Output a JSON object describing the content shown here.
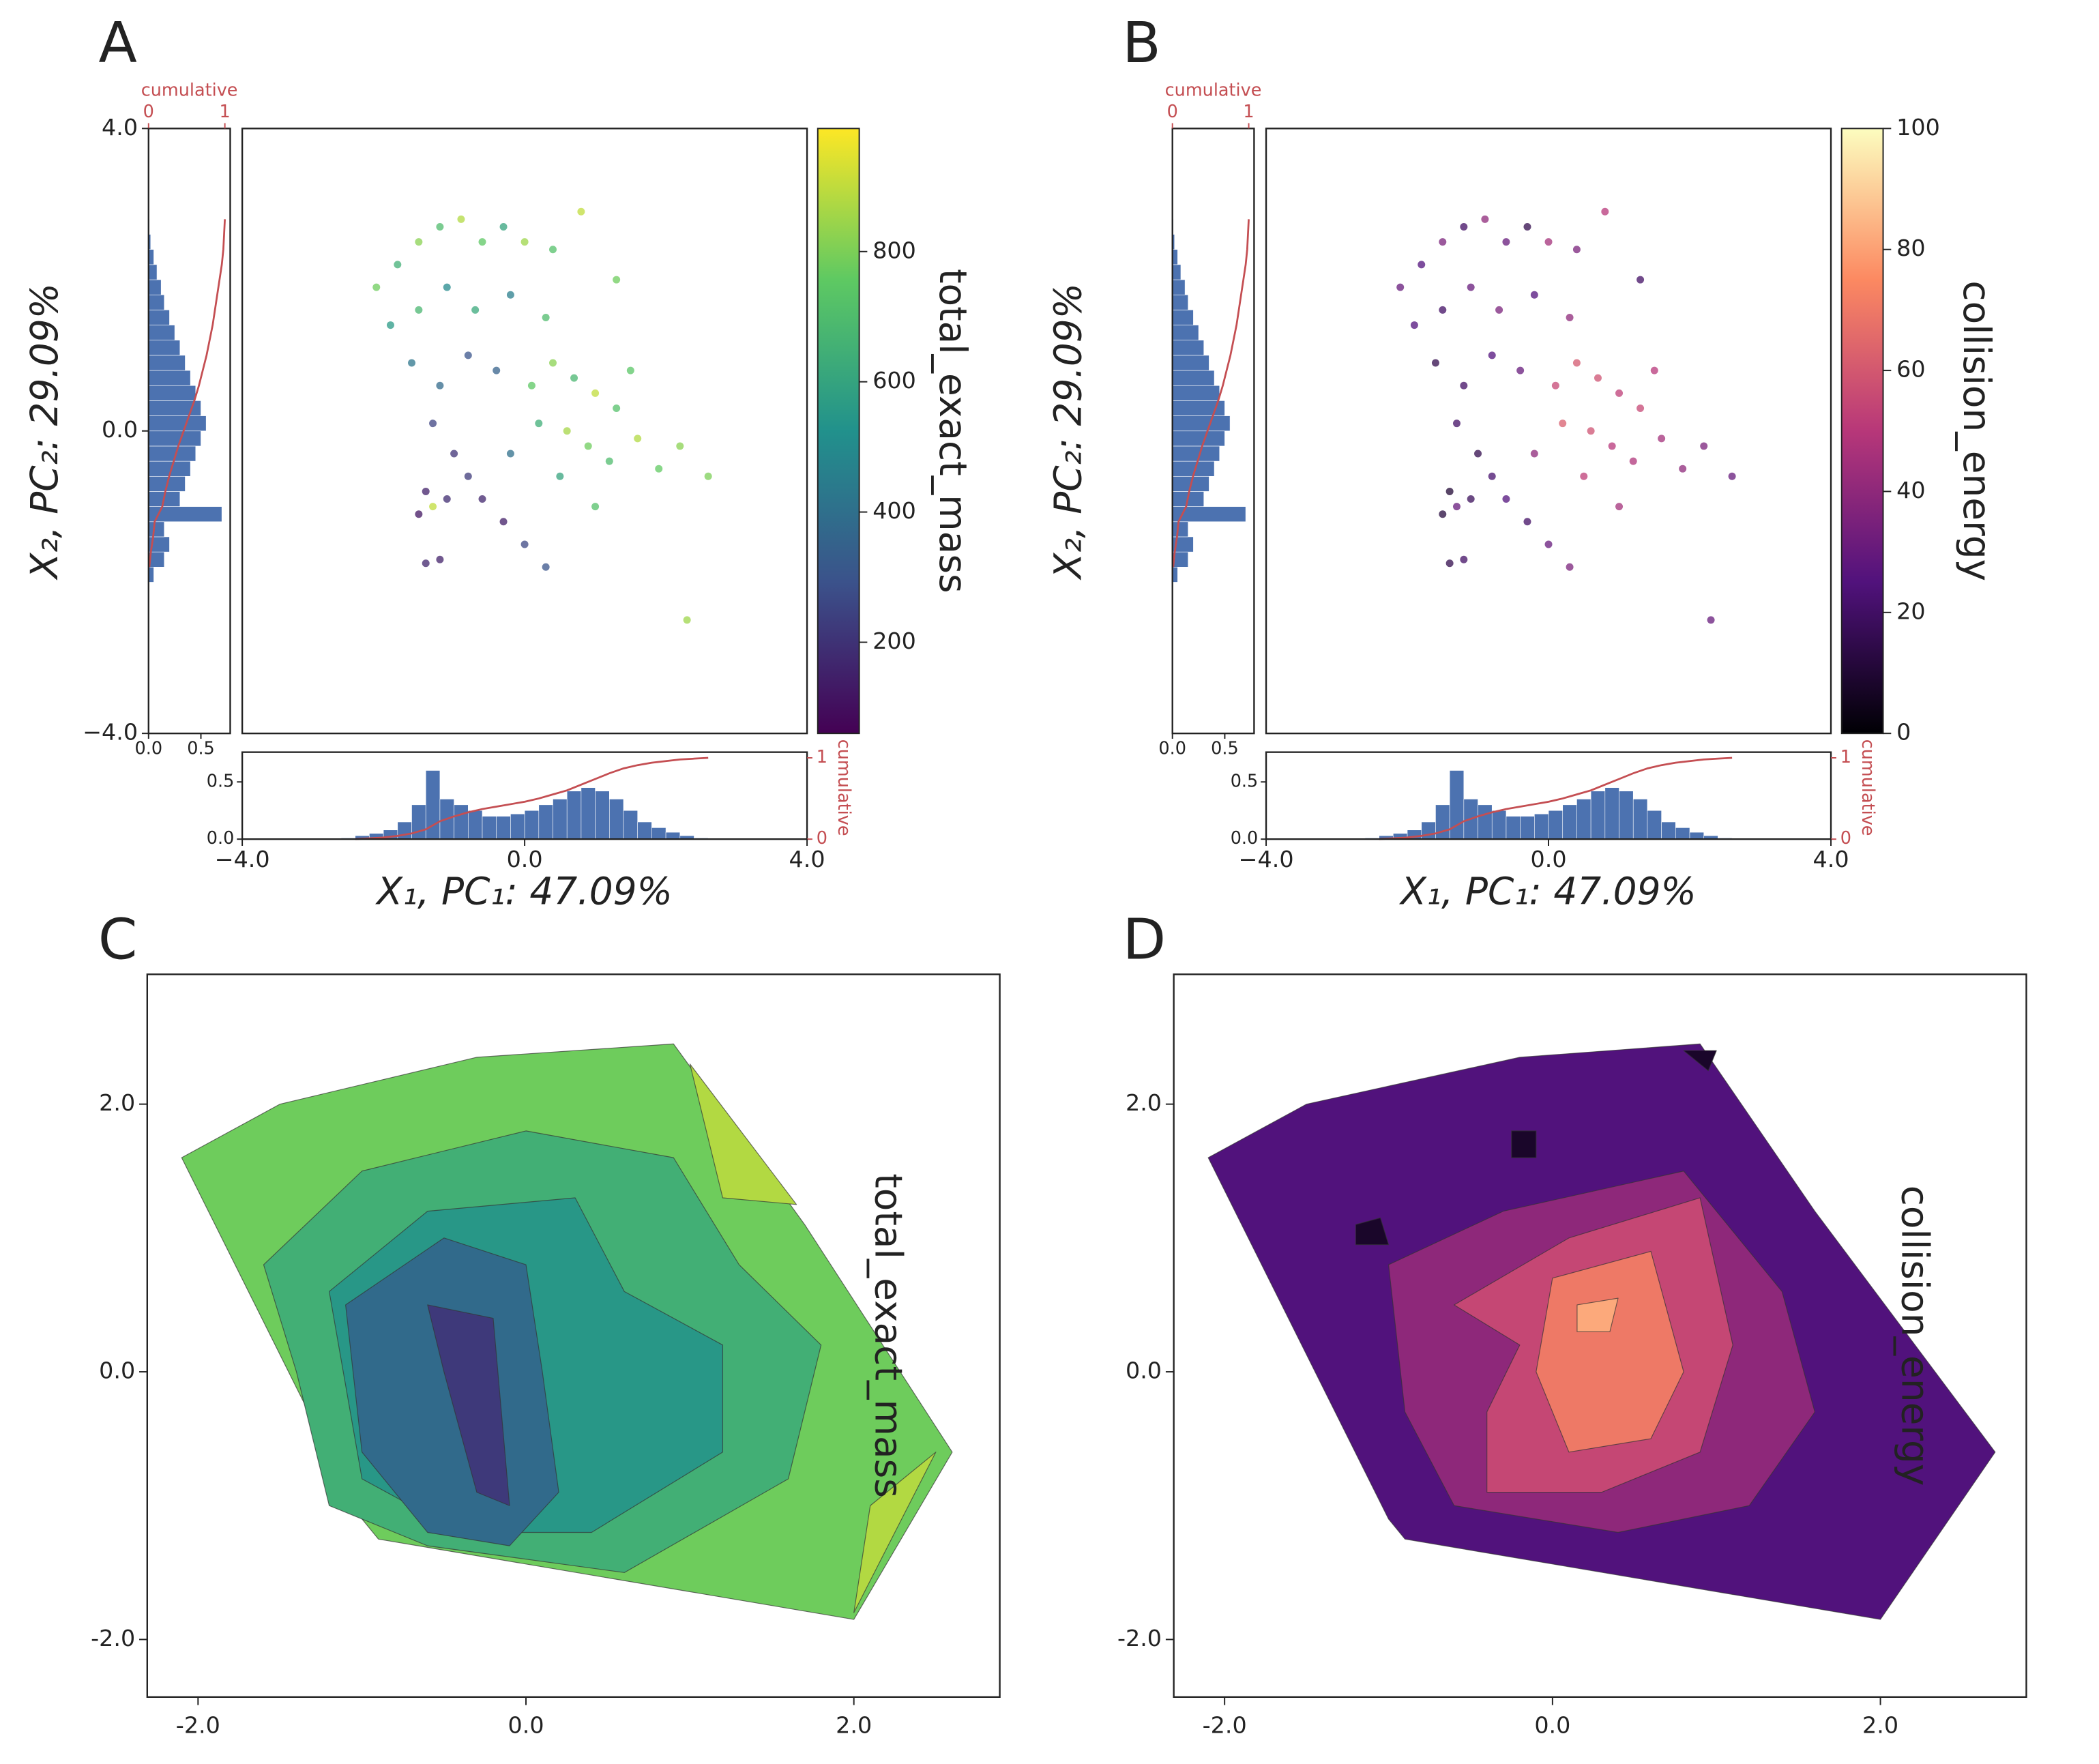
{
  "chart_data": [
    {
      "type": "scatter",
      "panel_label": "A",
      "xlabel": "X₁, PC₁: 47.09%",
      "ylabel": "X₂, PC₂: 29.09%",
      "xlim": [
        -4,
        4
      ],
      "ylim": [
        -4,
        4
      ],
      "xticks": [
        {
          "value": -4,
          "label": "−4.0"
        },
        {
          "value": 0,
          "label": "0.0"
        },
        {
          "value": 4,
          "label": "4.0"
        }
      ],
      "yticks": [
        {
          "value": -4,
          "label": "−4.0"
        },
        {
          "value": 0,
          "label": "0.0"
        },
        {
          "value": 4,
          "label": "4.0"
        }
      ],
      "x": [
        -2.1,
        -1.8,
        -1.5,
        -1.2,
        -0.9,
        -0.6,
        -0.3,
        0.0,
        0.4,
        0.8,
        1.3,
        -1.9,
        -1.5,
        -1.1,
        -0.7,
        -0.2,
        0.3,
        -1.6,
        -1.2,
        -0.8,
        -0.4,
        -1.3,
        -1.0,
        -1.4,
        -1.5,
        -1.3,
        -1.1,
        -0.8,
        -0.6,
        -0.3,
        0.0,
        0.3,
        -1.2,
        -1.4,
        0.1,
        0.4,
        0.7,
        1.0,
        1.3,
        0.2,
        0.6,
        0.9,
        1.2,
        1.6,
        1.9,
        2.2,
        2.6,
        0.5,
        1.0,
        2.3,
        -0.2,
        1.5
      ],
      "y": [
        1.9,
        2.2,
        2.5,
        2.7,
        2.8,
        2.5,
        2.7,
        2.5,
        2.4,
        2.9,
        2.0,
        1.4,
        1.6,
        1.9,
        1.6,
        1.8,
        1.5,
        0.9,
        0.6,
        1.0,
        0.8,
        0.1,
        -0.3,
        -0.8,
        -1.1,
        -1.0,
        -0.9,
        -0.6,
        -0.9,
        -1.2,
        -1.5,
        -1.8,
        -1.7,
        -1.75,
        0.6,
        0.9,
        0.7,
        0.5,
        0.3,
        0.1,
        0.0,
        -0.2,
        -0.4,
        -0.1,
        -0.5,
        -0.2,
        -0.6,
        -0.6,
        -1.0,
        -2.5,
        -0.3,
        0.8
      ],
      "c": [
        780,
        650,
        820,
        700,
        880,
        750,
        600,
        850,
        720,
        900,
        780,
        560,
        680,
        500,
        620,
        450,
        700,
        420,
        380,
        300,
        350,
        250,
        200,
        150,
        120,
        900,
        180,
        220,
        160,
        140,
        260,
        300,
        150,
        160,
        750,
        820,
        680,
        900,
        720,
        640,
        860,
        780,
        700,
        880,
        760,
        820,
        800,
        600,
        720,
        850,
        400,
        740
      ],
      "colorbar": {
        "label": "total_exact_mass",
        "colormap": "viridis",
        "lim": [
          60,
          989
        ],
        "ticks": [
          200,
          400,
          600,
          800
        ]
      },
      "x_hist": {
        "bins": [
          -2.6,
          -2.4,
          -2.2,
          -2.0,
          -1.8,
          -1.6,
          -1.4,
          -1.2,
          -1.0,
          -0.8,
          -0.6,
          -0.4,
          -0.2,
          0.0,
          0.2,
          0.4,
          0.6,
          0.8,
          1.0,
          1.2,
          1.4,
          1.6,
          1.8,
          2.0,
          2.2,
          2.4,
          2.6
        ],
        "counts": [
          0.01,
          0.03,
          0.05,
          0.08,
          0.15,
          0.3,
          0.6,
          0.35,
          0.3,
          0.25,
          0.2,
          0.2,
          0.22,
          0.25,
          0.3,
          0.35,
          0.42,
          0.45,
          0.42,
          0.35,
          0.25,
          0.15,
          0.1,
          0.06,
          0.03,
          0.01
        ],
        "color": "#4c72b0",
        "lim": [
          0,
          0.76
        ],
        "ticks": [
          {
            "value": 0,
            "label": "0.0"
          },
          {
            "value": 0.5,
            "label": "0.5"
          }
        ],
        "cumulative": {
          "label": "cumulative",
          "color": "#c44e52",
          "lim": [
            0,
            1.07
          ],
          "ticks": [
            0,
            1
          ],
          "values": [
            0.0,
            0.01,
            0.02,
            0.04,
            0.07,
            0.12,
            0.22,
            0.28,
            0.33,
            0.37,
            0.4,
            0.43,
            0.46,
            0.5,
            0.55,
            0.6,
            0.67,
            0.74,
            0.81,
            0.87,
            0.91,
            0.94,
            0.96,
            0.98,
            0.99,
            1.0
          ]
        }
      },
      "y_hist": {
        "bins": [
          -2.0,
          -1.8,
          -1.6,
          -1.4,
          -1.2,
          -1.0,
          -0.8,
          -0.6,
          -0.4,
          -0.2,
          0.0,
          0.2,
          0.4,
          0.6,
          0.8,
          1.0,
          1.2,
          1.4,
          1.6,
          1.8,
          2.0,
          2.2,
          2.4,
          2.6,
          2.8
        ],
        "counts": [
          0.05,
          0.15,
          0.2,
          0.15,
          0.7,
          0.3,
          0.35,
          0.4,
          0.45,
          0.5,
          0.55,
          0.5,
          0.45,
          0.4,
          0.35,
          0.3,
          0.25,
          0.2,
          0.15,
          0.12,
          0.08,
          0.05,
          0.02,
          0.01
        ],
        "color": "#4c72b0",
        "lim": [
          0,
          0.78
        ],
        "ticks": [
          {
            "value": 0,
            "label": "0.0"
          },
          {
            "value": 0.5,
            "label": "0.5"
          }
        ],
        "cumulative": {
          "label": "cumulative",
          "color": "#c44e52",
          "lim": [
            0,
            1.07
          ],
          "ticks": [
            0,
            1
          ],
          "values": [
            0.01,
            0.03,
            0.06,
            0.08,
            0.18,
            0.22,
            0.27,
            0.33,
            0.39,
            0.46,
            0.53,
            0.6,
            0.66,
            0.71,
            0.76,
            0.8,
            0.84,
            0.87,
            0.9,
            0.93,
            0.96,
            0.98,
            0.99,
            1.0
          ]
        }
      }
    },
    {
      "type": "scatter",
      "panel_label": "B",
      "xlabel": "X₁, PC₁: 47.09%",
      "ylabel": "X₂, PC₂: 29.09%",
      "xlim": [
        -4,
        4
      ],
      "ylim": [
        -4,
        4
      ],
      "xticks": [
        {
          "value": -4,
          "label": "−4.0"
        },
        {
          "value": 0,
          "label": "0.0"
        },
        {
          "value": 4,
          "label": "4.0"
        }
      ],
      "x": [
        -2.1,
        -1.8,
        -1.5,
        -1.2,
        -0.9,
        -0.6,
        -0.3,
        0.0,
        0.4,
        0.8,
        1.3,
        -1.9,
        -1.5,
        -1.1,
        -0.7,
        -0.2,
        0.3,
        -1.6,
        -1.2,
        -0.8,
        -0.4,
        -1.3,
        -1.0,
        -1.4,
        -1.5,
        -1.3,
        -1.1,
        -0.8,
        -0.6,
        -0.3,
        0.0,
        0.3,
        -1.2,
        -1.4,
        0.1,
        0.4,
        0.7,
        1.0,
        1.3,
        0.2,
        0.6,
        0.9,
        1.2,
        1.6,
        1.9,
        2.2,
        2.6,
        0.5,
        1.0,
        2.3,
        -0.2,
        1.5
      ],
      "y": [
        1.9,
        2.2,
        2.5,
        2.7,
        2.8,
        2.5,
        2.7,
        2.5,
        2.4,
        2.9,
        2.0,
        1.4,
        1.6,
        1.9,
        1.6,
        1.8,
        1.5,
        0.9,
        0.6,
        1.0,
        0.8,
        0.1,
        -0.3,
        -0.8,
        -1.1,
        -1.0,
        -0.9,
        -0.6,
        -0.9,
        -1.2,
        -1.5,
        -1.8,
        -1.7,
        -1.75,
        0.6,
        0.9,
        0.7,
        0.5,
        0.3,
        0.1,
        0.0,
        -0.2,
        -0.4,
        -0.1,
        -0.5,
        -0.2,
        -0.6,
        -0.6,
        -1.0,
        -2.5,
        -0.3,
        0.8
      ],
      "c": [
        30,
        25,
        35,
        20,
        40,
        30,
        15,
        45,
        35,
        50,
        20,
        25,
        20,
        30,
        35,
        25,
        40,
        15,
        20,
        25,
        30,
        20,
        15,
        10,
        12,
        30,
        18,
        22,
        25,
        20,
        30,
        35,
        20,
        15,
        55,
        60,
        58,
        52,
        55,
        62,
        58,
        50,
        48,
        45,
        40,
        35,
        30,
        52,
        45,
        30,
        40,
        50
      ],
      "colorbar": {
        "label": "collision_energy",
        "colormap": "magma",
        "lim": [
          0,
          100
        ],
        "ticks": [
          0,
          20,
          40,
          60,
          80,
          100
        ]
      },
      "x_hist": {
        "bins": [
          -2.6,
          -2.4,
          -2.2,
          -2.0,
          -1.8,
          -1.6,
          -1.4,
          -1.2,
          -1.0,
          -0.8,
          -0.6,
          -0.4,
          -0.2,
          0.0,
          0.2,
          0.4,
          0.6,
          0.8,
          1.0,
          1.2,
          1.4,
          1.6,
          1.8,
          2.0,
          2.2,
          2.4,
          2.6
        ],
        "counts": [
          0.01,
          0.03,
          0.05,
          0.08,
          0.15,
          0.3,
          0.6,
          0.35,
          0.3,
          0.25,
          0.2,
          0.2,
          0.22,
          0.25,
          0.3,
          0.35,
          0.42,
          0.45,
          0.42,
          0.35,
          0.25,
          0.15,
          0.1,
          0.06,
          0.03,
          0.01
        ],
        "color": "#4c72b0",
        "lim": [
          0,
          0.76
        ],
        "ticks": [
          {
            "value": 0,
            "label": "0.0"
          },
          {
            "value": 0.5,
            "label": "0.5"
          }
        ],
        "cumulative": {
          "label": "cumulative",
          "color": "#c44e52",
          "lim": [
            0,
            1.07
          ],
          "ticks": [
            0,
            1
          ],
          "values": [
            0.0,
            0.01,
            0.02,
            0.04,
            0.07,
            0.12,
            0.22,
            0.28,
            0.33,
            0.37,
            0.4,
            0.43,
            0.46,
            0.5,
            0.55,
            0.6,
            0.67,
            0.74,
            0.81,
            0.87,
            0.91,
            0.94,
            0.96,
            0.98,
            0.99,
            1.0
          ]
        }
      },
      "y_hist": {
        "bins": [
          -2.0,
          -1.8,
          -1.6,
          -1.4,
          -1.2,
          -1.0,
          -0.8,
          -0.6,
          -0.4,
          -0.2,
          0.0,
          0.2,
          0.4,
          0.6,
          0.8,
          1.0,
          1.2,
          1.4,
          1.6,
          1.8,
          2.0,
          2.2,
          2.4,
          2.6,
          2.8
        ],
        "counts": [
          0.05,
          0.15,
          0.2,
          0.15,
          0.7,
          0.3,
          0.35,
          0.4,
          0.45,
          0.5,
          0.55,
          0.5,
          0.45,
          0.4,
          0.35,
          0.3,
          0.25,
          0.2,
          0.15,
          0.12,
          0.08,
          0.05,
          0.02,
          0.01
        ],
        "color": "#4c72b0",
        "lim": [
          0,
          0.78
        ],
        "ticks": [
          {
            "value": 0,
            "label": "0.0"
          },
          {
            "value": 0.5,
            "label": "0.5"
          }
        ],
        "cumulative": {
          "label": "cumulative",
          "color": "#c44e52",
          "lim": [
            0,
            1.07
          ],
          "ticks": [
            0,
            1
          ],
          "values": [
            0.01,
            0.03,
            0.06,
            0.08,
            0.18,
            0.22,
            0.27,
            0.33,
            0.39,
            0.46,
            0.53,
            0.6,
            0.66,
            0.71,
            0.76,
            0.8,
            0.84,
            0.87,
            0.9,
            0.93,
            0.96,
            0.98,
            0.99,
            1.0
          ]
        }
      }
    },
    {
      "type": "contour",
      "panel_label": "C",
      "colorbar_label": "total_exact_mass",
      "colormap": "viridis",
      "clim": [
        60,
        989
      ],
      "xlim": [
        -2.31,
        2.89
      ],
      "ylim": [
        -2.43,
        2.97
      ],
      "xticks": [
        {
          "value": -2,
          "label": "-2.0"
        },
        {
          "value": 0,
          "label": "0.0"
        },
        {
          "value": 2,
          "label": "2.0"
        }
      ],
      "yticks": [
        {
          "value": -2,
          "label": "-2.0"
        },
        {
          "value": 0,
          "label": "0.0"
        },
        {
          "value": 2,
          "label": "2.0"
        }
      ],
      "regions": [
        {
          "level": 780,
          "x": [
            -2.1,
            -1.5,
            -0.3,
            0.9,
            1.7,
            2.6,
            2.0,
            -0.9,
            -1.0
          ],
          "y": [
            1.6,
            2.0,
            2.35,
            2.45,
            1.1,
            -0.6,
            -1.85,
            -1.25,
            -1.1
          ]
        },
        {
          "level": 650,
          "x": [
            -1.6,
            -1.0,
            0.0,
            0.9,
            1.3,
            1.8,
            1.6,
            0.6,
            -0.6,
            -1.2,
            -1.4
          ],
          "y": [
            0.8,
            1.5,
            1.8,
            1.6,
            0.8,
            0.2,
            -0.8,
            -1.5,
            -1.3,
            -1.0,
            0.0
          ]
        },
        {
          "level": 550,
          "x": [
            -1.2,
            -0.6,
            0.3,
            0.6,
            1.2,
            1.2,
            0.4,
            -0.4,
            -1.0
          ],
          "y": [
            0.6,
            1.2,
            1.3,
            0.6,
            0.2,
            -0.6,
            -1.2,
            -1.2,
            -0.8
          ]
        },
        {
          "level": 380,
          "x": [
            -1.1,
            -0.5,
            0.0,
            0.1,
            0.2,
            -0.1,
            -0.6,
            -1.0
          ],
          "y": [
            0.5,
            1.0,
            0.8,
            0.0,
            -0.9,
            -1.3,
            -1.2,
            -0.6
          ]
        },
        {
          "level": 220,
          "x": [
            -0.6,
            -0.2,
            -0.15,
            -0.1,
            -0.3,
            -0.5
          ],
          "y": [
            0.5,
            0.4,
            -0.3,
            -1.0,
            -0.9,
            0.0
          ]
        },
        {
          "level": 880,
          "x": [
            1.0,
            1.65,
            1.2
          ],
          "y": [
            2.3,
            1.25,
            1.3
          ]
        },
        {
          "level": 880,
          "x": [
            2.1,
            2.5,
            2.0
          ],
          "y": [
            -1.0,
            -0.6,
            -1.8
          ]
        }
      ]
    },
    {
      "type": "contour",
      "panel_label": "D",
      "colorbar_label": "collision_energy",
      "colormap": "magma",
      "clim": [
        0,
        100
      ],
      "xlim": [
        -2.31,
        2.89
      ],
      "ylim": [
        -2.43,
        2.97
      ],
      "xticks": [
        {
          "value": -2,
          "label": "-2.0"
        },
        {
          "value": 0,
          "label": "0.0"
        },
        {
          "value": 2,
          "label": "2.0"
        }
      ],
      "yticks": [
        {
          "value": -2,
          "label": "-2.0"
        },
        {
          "value": 0,
          "label": "0.0"
        },
        {
          "value": 2,
          "label": "2.0"
        }
      ],
      "regions": [
        {
          "level": 25,
          "x": [
            -2.1,
            -1.5,
            -0.2,
            0.9,
            1.6,
            2.7,
            2.0,
            -0.9,
            -1.0
          ],
          "y": [
            1.6,
            2.0,
            2.35,
            2.45,
            1.2,
            -0.6,
            -1.85,
            -1.25,
            -1.1
          ]
        },
        {
          "level": 40,
          "x": [
            -1.0,
            -0.3,
            0.8,
            1.4,
            1.6,
            1.2,
            0.4,
            -0.6,
            -0.9
          ],
          "y": [
            0.8,
            1.2,
            1.5,
            0.6,
            -0.3,
            -1.0,
            -1.2,
            -1.0,
            -0.3
          ]
        },
        {
          "level": 55,
          "x": [
            -0.6,
            0.1,
            0.9,
            1.1,
            0.9,
            0.3,
            -0.4,
            -0.4,
            -0.2
          ],
          "y": [
            0.5,
            1.0,
            1.3,
            0.2,
            -0.6,
            -0.9,
            -0.9,
            -0.3,
            0.2
          ]
        },
        {
          "level": 70,
          "x": [
            0.0,
            0.6,
            0.8,
            0.6,
            0.1,
            -0.1
          ],
          "y": [
            0.7,
            0.9,
            0.0,
            -0.5,
            -0.6,
            0.0
          ]
        },
        {
          "level": 82,
          "x": [
            0.15,
            0.4,
            0.35,
            0.15
          ],
          "y": [
            0.5,
            0.55,
            0.3,
            0.3
          ]
        },
        {
          "level": 8,
          "x": [
            -1.2,
            -1.05,
            -1.0,
            -1.2
          ],
          "y": [
            1.1,
            1.15,
            0.95,
            0.95
          ]
        },
        {
          "level": 8,
          "x": [
            -0.25,
            -0.1,
            -0.1,
            -0.25
          ],
          "y": [
            1.8,
            1.8,
            1.6,
            1.6
          ]
        },
        {
          "level": 8,
          "x": [
            0.8,
            1.0,
            0.95
          ],
          "y": [
            2.4,
            2.4,
            2.25
          ]
        }
      ]
    }
  ]
}
